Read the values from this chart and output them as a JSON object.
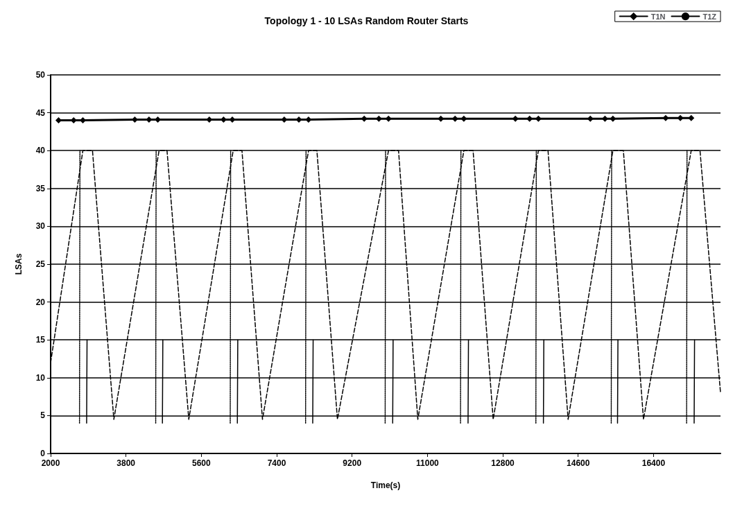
{
  "chart_data": {
    "type": "line",
    "title": "Topology 1 - 10 LSAs Random Router Starts",
    "xlabel": "Time(s)",
    "ylabel": "LSAs",
    "xlim": [
      2000,
      18000
    ],
    "xticks": [
      2000,
      3800,
      5600,
      7400,
      9200,
      11000,
      12800,
      14600,
      16400
    ],
    "ylim": [
      0,
      50
    ],
    "yticks": [
      0,
      5,
      10,
      15,
      20,
      25,
      30,
      35,
      40,
      45,
      50
    ],
    "grid": "y",
    "legend": "top right",
    "series": [
      {
        "name": "T1N",
        "color": "#000000",
        "marker": "diamond",
        "line_style": "solid",
        "x": [
          2190,
          2550,
          2770,
          4010,
          4350,
          4560,
          5790,
          6130,
          6340,
          7580,
          7930,
          8160,
          9490,
          9840,
          10070,
          11320,
          11660,
          11870,
          13100,
          13440,
          13650,
          14890,
          15240,
          15430,
          16690,
          17040,
          17300
        ],
        "values": [
          44,
          44,
          44,
          44.1,
          44.1,
          44.1,
          44.1,
          44.1,
          44.1,
          44.1,
          44.1,
          44.1,
          44.2,
          44.2,
          44.2,
          44.2,
          44.2,
          44.2,
          44.2,
          44.2,
          44.2,
          44.2,
          44.2,
          44.2,
          44.3,
          44.3,
          44.3
        ]
      },
      {
        "name": "T1Z",
        "color": "#000000",
        "marker": "none",
        "line_style": "solid",
        "x": [
          2860,
          2870,
          2880,
          4670,
          4680,
          4690,
          6460,
          6470,
          6480,
          8260,
          8270,
          8280,
          10170,
          10180,
          10190,
          11970,
          11980,
          11990,
          13770,
          13780,
          13790,
          15540,
          15550,
          15560,
          17370,
          17380
        ],
        "values": [
          4,
          15,
          null,
          4,
          15,
          null,
          4,
          15,
          null,
          4,
          15,
          null,
          4,
          15,
          null,
          4,
          15,
          null,
          4,
          15,
          null,
          4,
          15,
          null,
          4,
          15
        ]
      },
      {
        "color": "#000000",
        "marker": "none",
        "line_style": "dashed",
        "x": [
          2000,
          2770,
          3000,
          3510,
          4590,
          4780,
          5300,
          6360,
          6570,
          7060,
          8160,
          8360,
          8850,
          10070,
          10310,
          10770,
          11870,
          12090,
          12570,
          13650,
          13880,
          14360,
          15430,
          15680,
          16160,
          17300,
          17510,
          18000
        ],
        "values": [
          12,
          40,
          40,
          4.5,
          40,
          40,
          4.5,
          40,
          40,
          4.5,
          40,
          40,
          4.5,
          40,
          40,
          4.5,
          40,
          40,
          4.5,
          40,
          40,
          4.5,
          40,
          40,
          4.5,
          40,
          40,
          8
        ]
      },
      {
        "color": "#000000",
        "marker": "none",
        "line_style": "dotted",
        "x": [
          2690,
          2700,
          2710,
          4510,
          4520,
          4530,
          6290,
          6300,
          6310,
          8090,
          8100,
          8110,
          9990,
          10000,
          10010,
          11790,
          11800,
          11810,
          13590,
          13600,
          13610,
          15390,
          15400,
          15410,
          17190,
          17200
        ],
        "values": [
          4,
          40,
          null,
          4,
          40,
          null,
          4,
          40,
          null,
          4,
          40,
          null,
          4,
          40,
          null,
          4,
          40,
          null,
          4,
          40,
          null,
          4,
          40,
          null,
          4,
          40
        ]
      }
    ]
  }
}
